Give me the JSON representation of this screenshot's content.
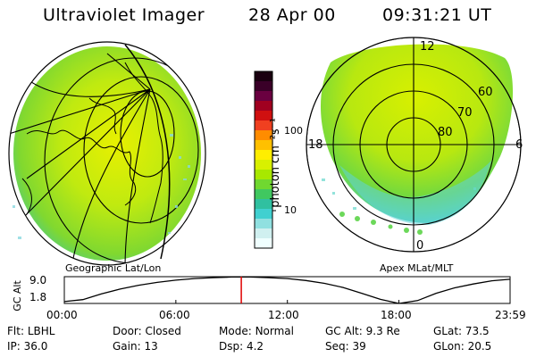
{
  "header": {
    "instrument": "Ultraviolet Imager",
    "date": "28 Apr 00",
    "time": "09:31:21 UT"
  },
  "left_panel": {
    "caption": "Geographic Lat/Lon"
  },
  "right_panel": {
    "caption": "Apex MLat/MLT",
    "mlt_labels": [
      "12",
      "18",
      "6",
      "0"
    ],
    "mlat_labels": [
      "60",
      "70",
      "80"
    ]
  },
  "colorbar": {
    "label": "photon cm⁻²s⁻¹",
    "ticks": [
      "100",
      "10"
    ],
    "colors": [
      "#1a0010",
      "#3a0028",
      "#6a0040",
      "#a00020",
      "#d01010",
      "#f04020",
      "#ff8c00",
      "#ffc000",
      "#ffee00",
      "#d8f000",
      "#a8e800",
      "#70d830",
      "#40c860",
      "#30c0a0",
      "#40d0d0",
      "#90e0e0",
      "#d0f0f0",
      "#f0ffff"
    ]
  },
  "chart_data": {
    "type": "line",
    "title": "",
    "ylabel": "GC Alt",
    "yticks": [
      "9.0",
      "1.8"
    ],
    "xticks": [
      "00:00",
      "06:00",
      "12:00",
      "18:00",
      "23:59"
    ],
    "x_hours": [
      0,
      1,
      2,
      3,
      4,
      5,
      6,
      7,
      8,
      9,
      10,
      11,
      12,
      13,
      14,
      15,
      16,
      17,
      18,
      19,
      20,
      21,
      22,
      23,
      23.98
    ],
    "y_alt_re": [
      1.6,
      2.2,
      4.0,
      5.5,
      6.7,
      7.6,
      8.3,
      8.8,
      9.1,
      9.3,
      9.3,
      9.1,
      8.8,
      8.2,
      7.3,
      6.0,
      4.2,
      2.3,
      1.0,
      1.9,
      4.2,
      5.9,
      7.1,
      8.1,
      8.6
    ],
    "marker_time": "09:31:21",
    "marker_hours": 9.52,
    "ylim": [
      1.0,
      9.4
    ],
    "xlim": [
      0,
      23.98
    ]
  },
  "footer": {
    "rows": [
      [
        {
          "label": "Flt:",
          "value": "LBHL"
        },
        {
          "label": "Door:",
          "value": "Closed"
        },
        {
          "label": "Mode:",
          "value": "Normal"
        },
        {
          "label": "GC Alt:",
          "value": "9.3 Re"
        },
        {
          "label": "GLat:",
          "value": "73.5"
        }
      ],
      [
        {
          "label": "IP:",
          "value": "36.0"
        },
        {
          "label": "Gain:",
          "value": "13"
        },
        {
          "label": "Dsp:",
          "value": "4.2"
        },
        {
          "label": "Seq:",
          "value": "39"
        },
        {
          "label": "GLon:",
          "value": "20.5"
        }
      ]
    ]
  }
}
